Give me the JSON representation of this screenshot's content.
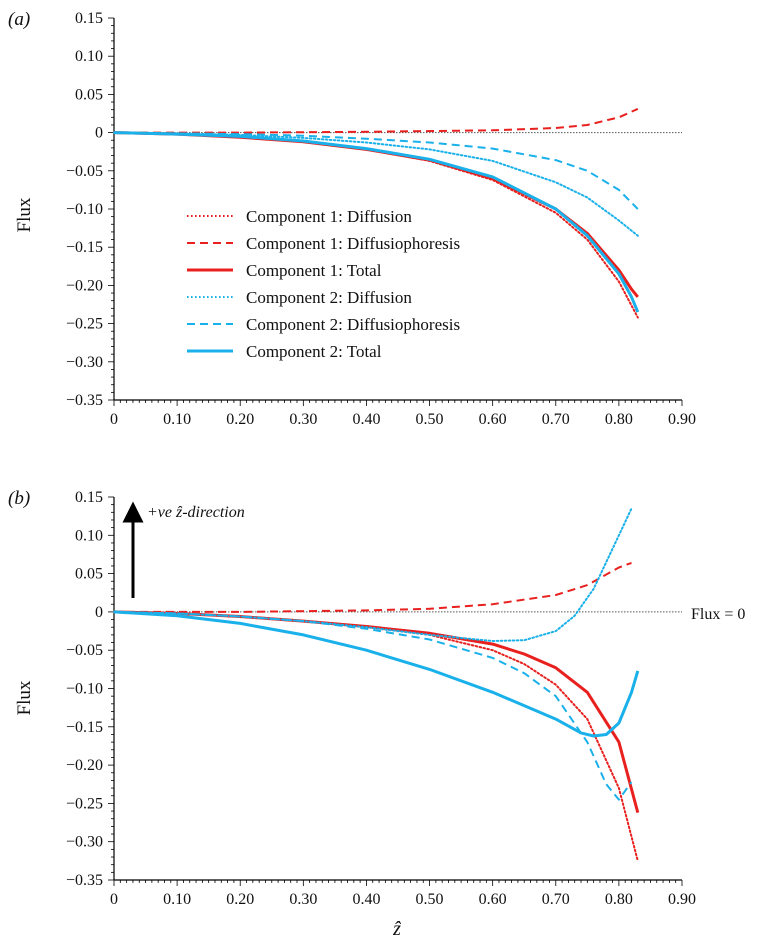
{
  "chart_data": [
    {
      "panel_label": "(a)",
      "type": "line",
      "ylabel": "Flux",
      "xlabel": "",
      "xlim": [
        0,
        0.9
      ],
      "ylim": [
        -0.35,
        0.15
      ],
      "xticks": [
        "0",
        "0.10",
        "0.20",
        "0.30",
        "0.40",
        "0.50",
        "0.60",
        "0.70",
        "0.80",
        "0.90"
      ],
      "yticks": [
        "0.15",
        "0.10",
        "0.05",
        "0",
        "−0.05",
        "−0.10",
        "−0.15",
        "−0.20",
        "−0.25",
        "−0.30",
        "−0.35"
      ],
      "legend_position": "lower-left-center",
      "zero_line": true,
      "series": [
        {
          "name": "Component 1: Diffusion",
          "color": "#e8201e",
          "style": "dotted",
          "x": [
            0,
            0.1,
            0.2,
            0.3,
            0.4,
            0.5,
            0.6,
            0.7,
            0.75,
            0.8,
            0.83
          ],
          "y": [
            0,
            -0.002,
            -0.006,
            -0.012,
            -0.022,
            -0.037,
            -0.062,
            -0.105,
            -0.14,
            -0.195,
            -0.242
          ]
        },
        {
          "name": "Component 1: Diffusiophoresis",
          "color": "#e8201e",
          "style": "dashed",
          "x": [
            0,
            0.2,
            0.4,
            0.6,
            0.7,
            0.75,
            0.8,
            0.83
          ],
          "y": [
            0,
            0.0,
            0.001,
            0.003,
            0.006,
            0.01,
            0.02,
            0.031
          ]
        },
        {
          "name": "Component 1: Total",
          "color": "#e8201e",
          "style": "solid",
          "x": [
            0,
            0.1,
            0.2,
            0.3,
            0.4,
            0.5,
            0.6,
            0.7,
            0.75,
            0.8,
            0.82,
            0.83
          ],
          "y": [
            0,
            -0.002,
            -0.006,
            -0.012,
            -0.022,
            -0.036,
            -0.06,
            -0.1,
            -0.132,
            -0.18,
            -0.205,
            -0.215
          ]
        },
        {
          "name": "Component 2: Diffusion",
          "color": "#1ab0ea",
          "style": "dotted",
          "x": [
            0,
            0.1,
            0.2,
            0.3,
            0.4,
            0.5,
            0.6,
            0.7,
            0.75,
            0.8,
            0.83
          ],
          "y": [
            0,
            -0.001,
            -0.003,
            -0.007,
            -0.013,
            -0.022,
            -0.037,
            -0.065,
            -0.085,
            -0.115,
            -0.135
          ]
        },
        {
          "name": "Component 2: Diffusiophoresis",
          "color": "#1ab0ea",
          "style": "dashed",
          "x": [
            0,
            0.1,
            0.2,
            0.3,
            0.4,
            0.5,
            0.6,
            0.7,
            0.75,
            0.8,
            0.83
          ],
          "y": [
            0,
            -0.001,
            -0.002,
            -0.004,
            -0.008,
            -0.013,
            -0.021,
            -0.036,
            -0.05,
            -0.075,
            -0.1
          ]
        },
        {
          "name": "Component 2: Total",
          "color": "#1ab0ea",
          "style": "solid",
          "x": [
            0,
            0.1,
            0.2,
            0.3,
            0.4,
            0.5,
            0.6,
            0.7,
            0.75,
            0.8,
            0.82,
            0.83
          ],
          "y": [
            0,
            -0.002,
            -0.005,
            -0.011,
            -0.021,
            -0.035,
            -0.058,
            -0.1,
            -0.135,
            -0.185,
            -0.215,
            -0.235
          ]
        }
      ]
    },
    {
      "panel_label": "(b)",
      "type": "line",
      "ylabel": "Flux",
      "xlabel": "ẑ",
      "xlim": [
        0,
        0.9
      ],
      "ylim": [
        -0.35,
        0.15
      ],
      "xticks": [
        "0",
        "0.10",
        "0.20",
        "0.30",
        "0.40",
        "0.50",
        "0.60",
        "0.70",
        "0.80",
        "0.90"
      ],
      "yticks": [
        "0.15",
        "0.10",
        "0.05",
        "0",
        "−0.05",
        "−0.10",
        "−0.15",
        "−0.20",
        "−0.25",
        "−0.30",
        "−0.35"
      ],
      "zero_line": true,
      "annotations": {
        "direction_label": "+ve ẑ-direction",
        "zero_label": "Flux = 0"
      },
      "series": [
        {
          "name": "Component 1: Diffusion",
          "color": "#e8201e",
          "style": "dotted",
          "x": [
            0,
            0.1,
            0.2,
            0.3,
            0.4,
            0.5,
            0.6,
            0.65,
            0.7,
            0.75,
            0.8,
            0.83
          ],
          "y": [
            0,
            -0.002,
            -0.006,
            -0.012,
            -0.02,
            -0.03,
            -0.05,
            -0.068,
            -0.095,
            -0.14,
            -0.23,
            -0.325
          ]
        },
        {
          "name": "Component 1: Diffusiophoresis",
          "color": "#e8201e",
          "style": "dashed",
          "x": [
            0,
            0.2,
            0.4,
            0.5,
            0.6,
            0.7,
            0.75,
            0.8,
            0.82
          ],
          "y": [
            0,
            0.0,
            0.002,
            0.004,
            0.01,
            0.022,
            0.035,
            0.058,
            0.064
          ]
        },
        {
          "name": "Component 1: Total",
          "color": "#e8201e",
          "style": "solid",
          "x": [
            0,
            0.1,
            0.2,
            0.3,
            0.4,
            0.5,
            0.6,
            0.65,
            0.7,
            0.75,
            0.8,
            0.83
          ],
          "y": [
            0,
            -0.002,
            -0.006,
            -0.012,
            -0.019,
            -0.028,
            -0.042,
            -0.055,
            -0.073,
            -0.105,
            -0.17,
            -0.262
          ]
        },
        {
          "name": "Component 2: Diffusion",
          "color": "#1ab0ea",
          "style": "dotted",
          "x": [
            0,
            0.1,
            0.2,
            0.3,
            0.4,
            0.5,
            0.6,
            0.65,
            0.7,
            0.73,
            0.76,
            0.8,
            0.82
          ],
          "y": [
            0,
            -0.002,
            -0.006,
            -0.012,
            -0.02,
            -0.03,
            -0.038,
            -0.037,
            -0.025,
            -0.005,
            0.03,
            0.1,
            0.135
          ]
        },
        {
          "name": "Component 2: Diffusiophoresis",
          "color": "#1ab0ea",
          "style": "dashed",
          "x": [
            0,
            0.1,
            0.2,
            0.3,
            0.4,
            0.5,
            0.6,
            0.65,
            0.7,
            0.75,
            0.78,
            0.8,
            0.82
          ],
          "y": [
            0,
            -0.002,
            -0.006,
            -0.012,
            -0.022,
            -0.036,
            -0.06,
            -0.08,
            -0.11,
            -0.17,
            -0.225,
            -0.245,
            -0.222
          ]
        },
        {
          "name": "Component 2: Total",
          "color": "#1ab0ea",
          "style": "solid",
          "x": [
            0,
            0.1,
            0.2,
            0.3,
            0.4,
            0.5,
            0.6,
            0.7,
            0.74,
            0.76,
            0.78,
            0.8,
            0.82,
            0.83
          ],
          "y": [
            0,
            -0.005,
            -0.015,
            -0.03,
            -0.05,
            -0.075,
            -0.105,
            -0.14,
            -0.158,
            -0.162,
            -0.16,
            -0.145,
            -0.105,
            -0.077
          ]
        }
      ]
    }
  ]
}
